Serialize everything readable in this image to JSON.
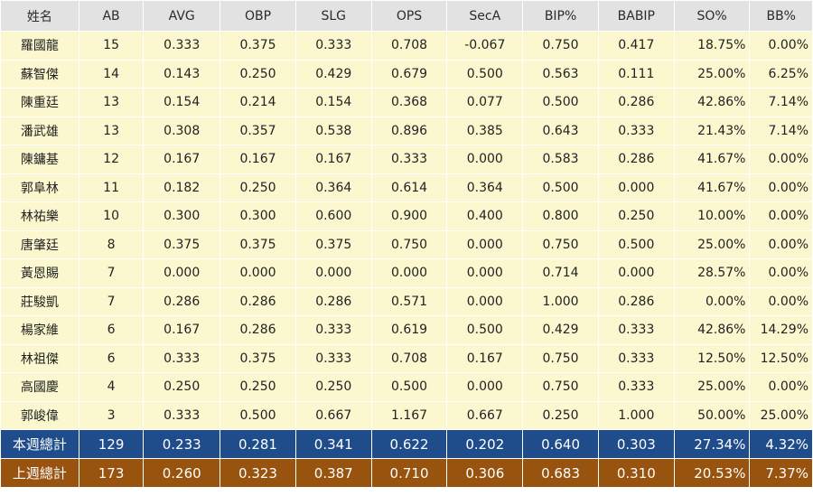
{
  "columns": [
    "姓名",
    "AB",
    "AVG",
    "OBP",
    "SLG",
    "OPS",
    "SecA",
    "BIP%",
    "BABIP",
    "SO%",
    "BB%"
  ],
  "rows": [
    [
      "羅國龍",
      "15",
      "0.333",
      "0.375",
      "0.333",
      "0.708",
      "-0.067",
      "0.750",
      "0.417",
      "18.75%",
      "0.00%"
    ],
    [
      "蘇智傑",
      "14",
      "0.143",
      "0.250",
      "0.429",
      "0.679",
      "0.500",
      "0.563",
      "0.111",
      "25.00%",
      "6.25%"
    ],
    [
      "陳重廷",
      "13",
      "0.154",
      "0.214",
      "0.154",
      "0.368",
      "0.077",
      "0.500",
      "0.286",
      "42.86%",
      "7.14%"
    ],
    [
      "潘武雄",
      "13",
      "0.308",
      "0.357",
      "0.538",
      "0.896",
      "0.385",
      "0.643",
      "0.333",
      "21.43%",
      "7.14%"
    ],
    [
      "陳鏞基",
      "12",
      "0.167",
      "0.167",
      "0.167",
      "0.333",
      "0.000",
      "0.583",
      "0.286",
      "41.67%",
      "0.00%"
    ],
    [
      "郭阜林",
      "11",
      "0.182",
      "0.250",
      "0.364",
      "0.614",
      "0.364",
      "0.500",
      "0.000",
      "41.67%",
      "0.00%"
    ],
    [
      "林祐樂",
      "10",
      "0.300",
      "0.300",
      "0.600",
      "0.900",
      "0.400",
      "0.800",
      "0.250",
      "10.00%",
      "0.00%"
    ],
    [
      "唐肇廷",
      "8",
      "0.375",
      "0.375",
      "0.375",
      "0.750",
      "0.000",
      "0.750",
      "0.500",
      "25.00%",
      "0.00%"
    ],
    [
      "黃恩賜",
      "7",
      "0.000",
      "0.000",
      "0.000",
      "0.000",
      "0.000",
      "0.714",
      "0.000",
      "28.57%",
      "0.00%"
    ],
    [
      "莊駿凱",
      "7",
      "0.286",
      "0.286",
      "0.286",
      "0.571",
      "0.000",
      "1.000",
      "0.286",
      "0.00%",
      "0.00%"
    ],
    [
      "楊家維",
      "6",
      "0.167",
      "0.286",
      "0.333",
      "0.619",
      "0.500",
      "0.429",
      "0.333",
      "42.86%",
      "14.29%"
    ],
    [
      "林祖傑",
      "6",
      "0.333",
      "0.375",
      "0.333",
      "0.708",
      "0.167",
      "0.750",
      "0.333",
      "12.50%",
      "12.50%"
    ],
    [
      "高國慶",
      "4",
      "0.250",
      "0.250",
      "0.250",
      "0.500",
      "0.000",
      "0.750",
      "0.333",
      "25.00%",
      "0.00%"
    ],
    [
      "郭峻偉",
      "3",
      "0.333",
      "0.500",
      "0.667",
      "1.167",
      "0.667",
      "0.250",
      "1.000",
      "50.00%",
      "25.00%"
    ]
  ],
  "totals": {
    "this_week": [
      "本週總計",
      "129",
      "0.233",
      "0.281",
      "0.341",
      "0.622",
      "0.202",
      "0.640",
      "0.303",
      "27.34%",
      "4.32%"
    ],
    "last_week": [
      "上週總計",
      "173",
      "0.260",
      "0.323",
      "0.387",
      "0.710",
      "0.306",
      "0.683",
      "0.310",
      "20.53%",
      "7.37%"
    ]
  },
  "colors": {
    "header_bg": "#e2e2e2",
    "row_bg": "#fbf8cf",
    "this_week_bg": "#1f4d8c",
    "last_week_bg": "#98530f"
  }
}
